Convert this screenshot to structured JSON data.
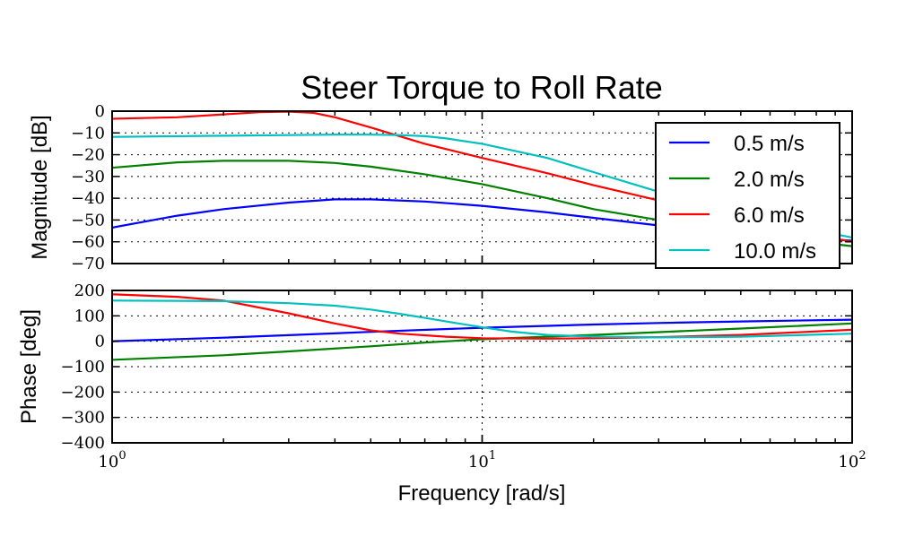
{
  "title": "Steer Torque to Roll Rate",
  "chart_data": [
    {
      "type": "line",
      "panel": "magnitude",
      "ylabel": "Magnitude [dB]",
      "xscale": "log",
      "xlim": [
        1,
        100
      ],
      "ylim": [
        -70,
        0
      ],
      "yticks": [
        0,
        -10,
        -20,
        -30,
        -40,
        -50,
        -60,
        -70
      ],
      "ytick_labels": [
        "0",
        "−10",
        "−20",
        "−30",
        "−40",
        "−50",
        "−60",
        "−70"
      ],
      "grid": true,
      "legend": "top-right",
      "series": [
        {
          "name": "0.5 m/s",
          "color": "#0000ff",
          "x": [
            1,
            1.5,
            2,
            3,
            4,
            5,
            7,
            10,
            15,
            20,
            30,
            50,
            70,
            100
          ],
          "y": [
            -53.5,
            -48,
            -45,
            -42,
            -40.5,
            -40.5,
            -41.5,
            -43.5,
            -46.5,
            -49,
            -52.5,
            -56,
            -58,
            -59.5
          ]
        },
        {
          "name": "2.0 m/s",
          "color": "#008000",
          "x": [
            1,
            1.5,
            2,
            3,
            4,
            5,
            7,
            10,
            15,
            20,
            30,
            50,
            70,
            100
          ],
          "y": [
            -26,
            -23.5,
            -22.8,
            -22.8,
            -23.8,
            -25.5,
            -29,
            -33.5,
            -40,
            -45,
            -50,
            -56,
            -59,
            -62
          ]
        },
        {
          "name": "6.0 m/s",
          "color": "#ff0000",
          "x": [
            1,
            1.5,
            2,
            2.5,
            3,
            3.5,
            4,
            5,
            7,
            10,
            15,
            20,
            30,
            50,
            70,
            100
          ],
          "y": [
            -3.5,
            -2.8,
            -1.5,
            -0.5,
            -0.2,
            -0.8,
            -2.8,
            -7.5,
            -15,
            -21.5,
            -28.5,
            -34,
            -41,
            -50,
            -55,
            -60
          ]
        },
        {
          "name": "10.0 m/s",
          "color": "#00bfbf",
          "x": [
            1,
            2,
            3,
            4,
            5,
            6,
            7,
            8,
            10,
            15,
            20,
            30,
            50,
            70,
            100
          ],
          "y": [
            -11.8,
            -11.3,
            -11,
            -10.8,
            -10.8,
            -11,
            -11.5,
            -12.5,
            -15,
            -21.5,
            -28,
            -37,
            -47,
            -53,
            -58
          ]
        }
      ]
    },
    {
      "type": "line",
      "panel": "phase",
      "ylabel": "Phase [deg]",
      "xlabel": "Frequency [rad/s]",
      "xscale": "log",
      "xlim": [
        1,
        100
      ],
      "ylim": [
        -400,
        200
      ],
      "yticks": [
        200,
        100,
        0,
        -100,
        -200,
        -300,
        -400
      ],
      "ytick_labels": [
        "200",
        "100",
        "0",
        "−100",
        "−200",
        "−300",
        "−400"
      ],
      "xtick_labels": [
        {
          "base": "10",
          "exp": "0"
        },
        {
          "base": "10",
          "exp": "1"
        },
        {
          "base": "10",
          "exp": "2"
        }
      ],
      "grid": true,
      "series": [
        {
          "name": "0.5 m/s",
          "color": "#0000ff",
          "x": [
            1,
            2,
            3,
            5,
            10,
            20,
            30,
            50,
            100
          ],
          "y": [
            0,
            14,
            24,
            37,
            53,
            66,
            72,
            78,
            85
          ]
        },
        {
          "name": "2.0 m/s",
          "color": "#008000",
          "x": [
            1,
            2,
            3,
            5,
            7,
            10,
            15,
            20,
            30,
            50,
            100
          ],
          "y": [
            -73,
            -55,
            -40,
            -20,
            -5,
            8,
            18,
            25,
            36,
            50,
            70
          ]
        },
        {
          "name": "6.0 m/s",
          "color": "#ff0000",
          "x": [
            1,
            1.5,
            2,
            3,
            4,
            5,
            6,
            8,
            10,
            15,
            20,
            30,
            50,
            100
          ],
          "y": [
            185,
            175,
            160,
            110,
            70,
            43,
            30,
            18,
            12,
            10,
            12,
            16,
            25,
            45
          ]
        },
        {
          "name": "10.0 m/s",
          "color": "#00bfbf",
          "x": [
            1,
            2,
            3,
            4,
            5,
            6,
            7,
            8,
            10,
            12,
            15,
            20,
            30,
            50,
            100
          ],
          "y": [
            160,
            158,
            150,
            140,
            125,
            108,
            92,
            78,
            55,
            38,
            25,
            18,
            15,
            18,
            30
          ]
        }
      ]
    }
  ]
}
